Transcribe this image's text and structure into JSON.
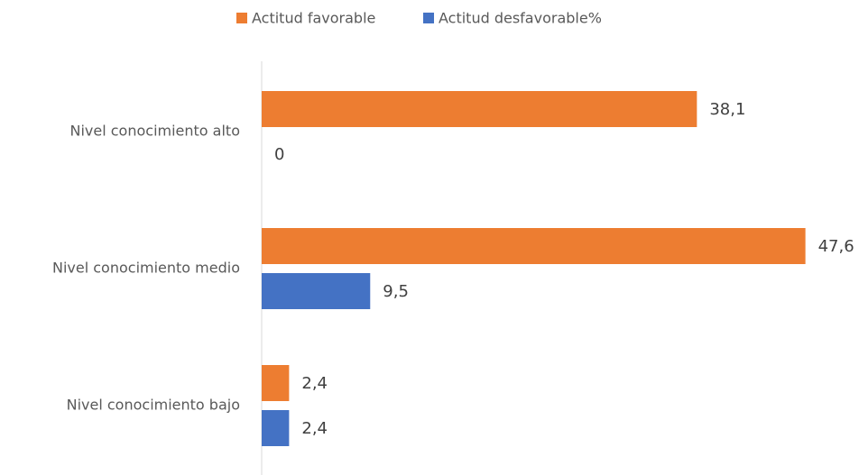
{
  "chart_data": {
    "type": "bar",
    "orientation": "horizontal",
    "categories": [
      "Nivel conocimiento alto",
      "Nivel conocimiento medio",
      "Nivel conocimiento bajo"
    ],
    "series": [
      {
        "name": "Actitud favorable",
        "color": "#ED7D31",
        "values": [
          38.1,
          47.6,
          2.4
        ],
        "value_labels": [
          "38,1",
          "47,6",
          "2,4"
        ]
      },
      {
        "name": "Actitud desfavorable%",
        "color": "#4472C4",
        "values": [
          0,
          9.5,
          2.4
        ],
        "value_labels": [
          "0",
          "9,5",
          "2,4"
        ]
      }
    ],
    "xlim": [
      0,
      50
    ],
    "legend": "top"
  }
}
